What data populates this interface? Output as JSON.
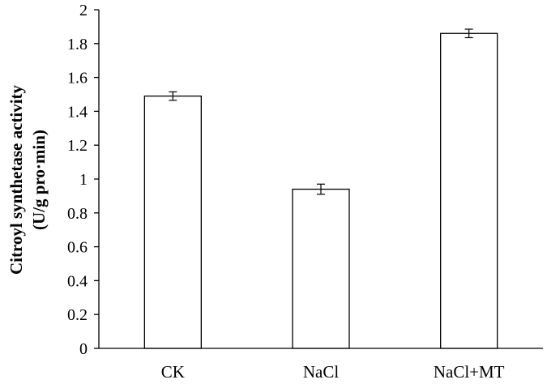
{
  "chart_data": {
    "type": "bar",
    "categories": [
      "CK",
      "NaCl",
      "NaCl+MT"
    ],
    "values": [
      1.49,
      0.94,
      1.86
    ],
    "errors": [
      0.025,
      0.03,
      0.025
    ],
    "ylabel_line1": "Citroyl synthetase activity",
    "ylabel_line2": "(U/g pro·min)",
    "ylim": [
      0,
      2
    ],
    "yticks": [
      "0",
      "0.2",
      "0.4",
      "0.6",
      "0.8",
      "1",
      "1.2",
      "1.4",
      "1.6",
      "1.8",
      "2"
    ],
    "grid": false,
    "bar_fill": "#ffffff",
    "bar_stroke": "#000000"
  }
}
